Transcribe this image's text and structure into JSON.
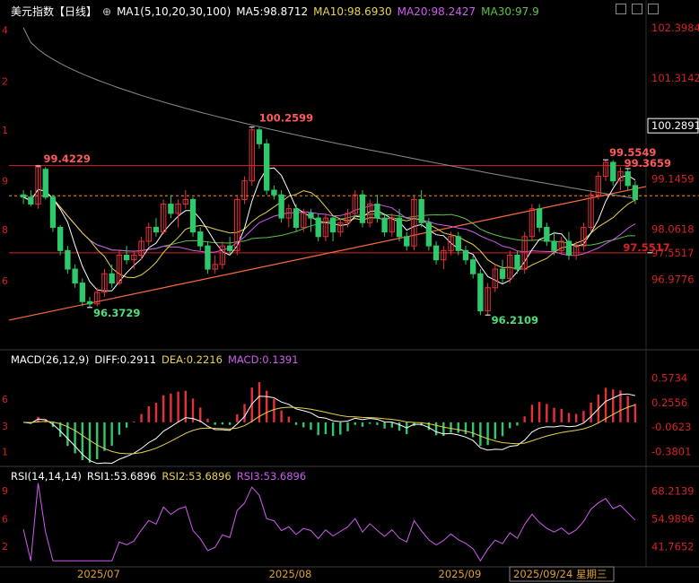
{
  "header": {
    "title": "美元指数【日线】",
    "ma_label": "MA1(5,10,20,30,100)",
    "ma5": "MA5:98.8712",
    "ma10": "MA10:98.6930",
    "ma20": "MA20:98.2427",
    "ma30": "MA30:97.9"
  },
  "colors": {
    "up": "#e8303a",
    "down": "#2ec96a",
    "ma5": "#ffffff",
    "ma10": "#e8d24a",
    "ma20": "#d05cf0",
    "ma30": "#5ec24a",
    "ma100": "#8c8c8c",
    "hline": "#d52323",
    "trend": "#ff6a3a",
    "dash": "#ff9900"
  },
  "chart_data": [
    {
      "type": "candlestick",
      "title": "美元指数【日线】",
      "y_ticks": [
        "102.3984",
        "101.3142",
        "100.2891",
        "99.1459",
        "98.0618",
        "97.5517",
        "96.9776"
      ],
      "left_ticks": [
        "4",
        "2",
        "1",
        "9",
        "8",
        "6"
      ],
      "x_ticks": [
        "2025/07",
        "2025/08",
        "2025/09"
      ],
      "cursor_date": "2025/09/24 星期三",
      "current_price": "100.2891",
      "annotations": [
        "100.2599",
        "99.4229",
        "96.3729",
        "96.2109",
        "99.5549",
        "99.3659",
        "97.5517"
      ],
      "hlines": [
        99.43,
        97.55
      ],
      "ylim": [
        95.5,
        102.65
      ],
      "candles": [
        [
          98.8,
          98.9,
          98.6,
          98.75
        ],
        [
          98.75,
          98.9,
          98.55,
          98.6
        ],
        [
          98.6,
          99.45,
          98.5,
          99.4
        ],
        [
          99.35,
          99.4,
          98.7,
          98.75
        ],
        [
          98.75,
          98.8,
          98.0,
          98.1
        ],
        [
          98.1,
          98.15,
          97.5,
          97.6
        ],
        [
          97.6,
          97.7,
          97.1,
          97.2
        ],
        [
          97.2,
          97.3,
          96.8,
          96.9
        ],
        [
          96.9,
          97.0,
          96.4,
          96.5
        ],
        [
          96.5,
          96.6,
          96.37,
          96.45
        ],
        [
          96.45,
          96.8,
          96.4,
          96.7
        ],
        [
          96.7,
          97.2,
          96.6,
          97.1
        ],
        [
          97.1,
          97.3,
          96.8,
          96.9
        ],
        [
          96.9,
          97.6,
          96.85,
          97.5
        ],
        [
          97.5,
          97.7,
          97.3,
          97.4
        ],
        [
          97.4,
          97.6,
          97.2,
          97.5
        ],
        [
          97.5,
          97.9,
          97.4,
          97.8
        ],
        [
          97.8,
          98.2,
          97.7,
          98.1
        ],
        [
          98.1,
          98.3,
          97.9,
          98.0
        ],
        [
          98.0,
          98.7,
          97.95,
          98.6
        ],
        [
          98.6,
          98.8,
          98.3,
          98.4
        ],
        [
          98.4,
          98.7,
          98.1,
          98.6
        ],
        [
          98.6,
          98.9,
          98.5,
          98.7
        ],
        [
          98.7,
          98.75,
          97.9,
          98.0
        ],
        [
          98.0,
          98.1,
          97.6,
          97.7
        ],
        [
          97.7,
          97.8,
          97.1,
          97.2
        ],
        [
          97.2,
          97.5,
          97.1,
          97.3
        ],
        [
          97.3,
          97.8,
          97.2,
          97.7
        ],
        [
          97.7,
          97.9,
          97.5,
          97.6
        ],
        [
          97.6,
          98.8,
          97.5,
          98.7
        ],
        [
          98.7,
          99.2,
          98.6,
          99.1
        ],
        [
          99.1,
          100.26,
          99.0,
          100.2
        ],
        [
          100.2,
          100.26,
          99.8,
          99.9
        ],
        [
          99.9,
          100.0,
          98.8,
          98.9
        ],
        [
          98.9,
          99.0,
          98.7,
          98.8
        ],
        [
          98.8,
          98.9,
          98.2,
          98.3
        ],
        [
          98.3,
          98.6,
          98.1,
          98.5
        ],
        [
          98.5,
          98.6,
          98.0,
          98.1
        ],
        [
          98.1,
          98.5,
          98.0,
          98.4
        ],
        [
          98.4,
          98.5,
          98.0,
          98.3
        ],
        [
          98.3,
          98.4,
          97.8,
          97.9
        ],
        [
          97.9,
          98.4,
          97.8,
          98.3
        ],
        [
          98.3,
          98.35,
          97.8,
          98.0
        ],
        [
          98.0,
          98.3,
          97.9,
          98.2
        ],
        [
          98.2,
          98.5,
          98.1,
          98.4
        ],
        [
          98.4,
          98.9,
          98.3,
          98.8
        ],
        [
          98.8,
          98.9,
          98.1,
          98.2
        ],
        [
          98.2,
          98.7,
          98.1,
          98.6
        ],
        [
          98.6,
          98.8,
          98.2,
          98.3
        ],
        [
          98.3,
          98.4,
          97.9,
          98.0
        ],
        [
          98.0,
          98.4,
          97.9,
          98.3
        ],
        [
          98.3,
          98.5,
          97.8,
          97.9
        ],
        [
          97.9,
          98.0,
          97.6,
          97.7
        ],
        [
          97.7,
          98.8,
          97.6,
          98.7
        ],
        [
          98.7,
          98.9,
          98.1,
          98.2
        ],
        [
          98.2,
          98.3,
          97.6,
          97.7
        ],
        [
          97.7,
          97.8,
          97.3,
          97.4
        ],
        [
          97.4,
          97.7,
          97.2,
          97.6
        ],
        [
          97.6,
          98.0,
          97.5,
          97.9
        ],
        [
          97.9,
          98.0,
          97.5,
          97.6
        ],
        [
          97.6,
          97.7,
          97.3,
          97.4
        ],
        [
          97.4,
          97.5,
          97.0,
          97.1
        ],
        [
          97.1,
          97.2,
          96.21,
          96.3
        ],
        [
          96.3,
          96.9,
          96.2,
          96.8
        ],
        [
          96.8,
          97.3,
          96.7,
          97.2
        ],
        [
          97.2,
          97.4,
          96.9,
          97.0
        ],
        [
          97.0,
          97.6,
          96.9,
          97.5
        ],
        [
          97.5,
          97.6,
          97.1,
          97.2
        ],
        [
          97.2,
          98.0,
          97.1,
          97.9
        ],
        [
          97.9,
          98.6,
          97.8,
          98.5
        ],
        [
          98.5,
          98.6,
          98.0,
          98.1
        ],
        [
          98.1,
          98.2,
          97.7,
          97.8
        ],
        [
          97.8,
          98.0,
          97.5,
          97.6
        ],
        [
          97.6,
          97.9,
          97.5,
          97.8
        ],
        [
          97.8,
          98.0,
          97.4,
          97.5
        ],
        [
          97.5,
          97.8,
          97.4,
          97.7
        ],
        [
          97.7,
          98.2,
          97.6,
          98.1
        ],
        [
          98.1,
          98.9,
          98.0,
          98.8
        ],
        [
          98.8,
          99.3,
          98.7,
          99.2
        ],
        [
          99.2,
          99.55,
          99.1,
          99.5
        ],
        [
          99.5,
          99.55,
          99.0,
          99.1
        ],
        [
          99.1,
          99.4,
          98.9,
          99.3
        ],
        [
          99.3,
          99.37,
          98.9,
          99.0
        ],
        [
          99.0,
          99.1,
          98.6,
          98.7
        ]
      ]
    },
    {
      "type": "macd",
      "label": "MACD(26,12,9)",
      "diff": "DIFF:0.2911",
      "dea": "DEA:0.2216",
      "macd": "MACD:0.1391",
      "y_ticks": [
        "0.5734",
        "0.2556",
        "-0.0623",
        "-0.3801"
      ],
      "left_ticks": [
        "6",
        "3",
        "1"
      ],
      "ylim": [
        -0.55,
        0.78
      ]
    },
    {
      "type": "line",
      "label": "RSI(14,14,14)",
      "rsi1": "RSI1:53.6896",
      "rsi2": "RSI2:53.6896",
      "rsi3": "RSI3:53.6896",
      "y_ticks": [
        "68.2139",
        "54.9896",
        "41.7652"
      ],
      "left_ticks": [
        "9",
        "6",
        "2"
      ],
      "ylim": [
        33,
        74
      ]
    }
  ]
}
